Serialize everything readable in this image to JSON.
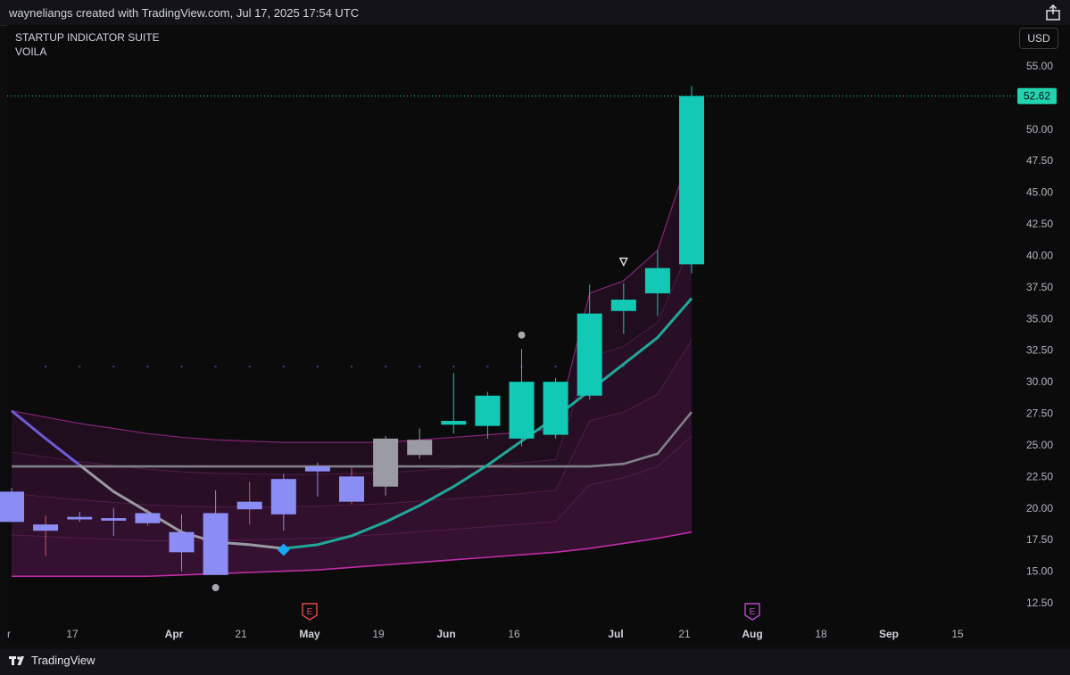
{
  "header": {
    "attribution": "wayneliangs created with TradingView.com, Jul 17, 2025 17:54 UTC"
  },
  "legend": {
    "line1": "STARTUP INDICATOR SUITE",
    "line2": "VOILA"
  },
  "currency_button": "USD",
  "price_tag": {
    "value": "52.62",
    "color": "#22d3b0"
  },
  "footer": {
    "brand": "TradingView"
  },
  "icons": {
    "share": "share-icon",
    "logo": "tradingview-logo-icon",
    "earnings": "earnings-marker-icon"
  },
  "colors": {
    "up": "#12c9b5",
    "down_blue": "#8c8cf5",
    "neutral": "#9b9ba3",
    "ema": "#1fa89a",
    "band": "#a02a8c"
  },
  "chart_data": {
    "type": "candlestick",
    "title": "STARTUP INDICATOR SUITE",
    "subtitle": "VOILA",
    "xlabel": "",
    "ylabel": "",
    "ylim": [
      12.5,
      55.0
    ],
    "y_ticks": [
      "55.00",
      "52.50",
      "50.00",
      "47.50",
      "45.00",
      "42.50",
      "40.00",
      "37.50",
      "35.00",
      "32.50",
      "30.00",
      "27.50",
      "25.00",
      "22.50",
      "20.00",
      "17.50",
      "15.00",
      "12.50"
    ],
    "x_ticks": [
      "r",
      "17",
      "Apr",
      "21",
      "May",
      "19",
      "Jun",
      "16",
      "Jul",
      "21",
      "Aug",
      "18",
      "Sep",
      "15"
    ],
    "last_price": 52.62,
    "candles": [
      {
        "o": 21.3,
        "h": 21.6,
        "l": 18.9,
        "c": 18.9,
        "color": "down_blue"
      },
      {
        "o": 18.7,
        "h": 19.4,
        "l": 16.2,
        "c": 18.2,
        "color": "down_blue"
      },
      {
        "o": 19.3,
        "h": 19.7,
        "l": 18.9,
        "c": 19.1,
        "color": "down_blue"
      },
      {
        "o": 19.0,
        "h": 20.0,
        "l": 17.8,
        "c": 19.2,
        "color": "down_blue"
      },
      {
        "o": 19.6,
        "h": 19.9,
        "l": 18.6,
        "c": 18.8,
        "color": "down_blue"
      },
      {
        "o": 18.1,
        "h": 19.5,
        "l": 15.0,
        "c": 16.5,
        "color": "down_blue"
      },
      {
        "o": 14.7,
        "h": 21.4,
        "l": 14.7,
        "c": 19.6,
        "color": "down_blue"
      },
      {
        "o": 19.9,
        "h": 22.1,
        "l": 18.7,
        "c": 20.5,
        "color": "down_blue"
      },
      {
        "o": 19.5,
        "h": 22.7,
        "l": 18.2,
        "c": 22.3,
        "color": "down_blue"
      },
      {
        "o": 22.9,
        "h": 23.6,
        "l": 20.9,
        "c": 23.3,
        "color": "down_blue"
      },
      {
        "o": 22.5,
        "h": 23.2,
        "l": 20.3,
        "c": 20.5,
        "color": "down_blue"
      },
      {
        "o": 21.7,
        "h": 25.7,
        "l": 21.0,
        "c": 25.5,
        "color": "neutral"
      },
      {
        "o": 24.2,
        "h": 26.3,
        "l": 23.9,
        "c": 25.4,
        "color": "neutral"
      },
      {
        "o": 26.6,
        "h": 30.7,
        "l": 25.9,
        "c": 26.9,
        "color": "up"
      },
      {
        "o": 26.5,
        "h": 29.2,
        "l": 25.5,
        "c": 28.9,
        "color": "up"
      },
      {
        "o": 25.5,
        "h": 32.6,
        "l": 24.9,
        "c": 30.0,
        "color": "up"
      },
      {
        "o": 25.8,
        "h": 30.3,
        "l": 25.5,
        "c": 30.0,
        "color": "up"
      },
      {
        "o": 28.9,
        "h": 37.7,
        "l": 28.6,
        "c": 35.4,
        "color": "up"
      },
      {
        "o": 35.6,
        "h": 37.8,
        "l": 33.8,
        "c": 36.5,
        "color": "up"
      },
      {
        "o": 37.0,
        "h": 40.4,
        "l": 35.2,
        "c": 39.0,
        "color": "up"
      },
      {
        "o": 39.3,
        "h": 53.4,
        "l": 38.6,
        "c": 52.62,
        "color": "up"
      }
    ],
    "ema": [
      27.7,
      25.5,
      23.4,
      21.3,
      19.7,
      18.1,
      17.3,
      17.1,
      16.8,
      17.1,
      17.8,
      18.9,
      20.2,
      21.7,
      23.4,
      25.3,
      27.2,
      29.3,
      31.4,
      33.5,
      36.6
    ],
    "baseline": [
      23.3,
      23.3,
      23.3,
      23.3,
      23.3,
      23.3,
      23.3,
      23.3,
      23.3,
      23.3,
      23.3,
      23.3,
      23.3,
      23.3,
      23.3,
      23.3,
      23.3,
      23.3,
      23.5,
      24.3,
      27.6
    ],
    "band_upper": [
      27.7,
      27.2,
      26.7,
      26.3,
      25.9,
      25.6,
      25.4,
      25.3,
      25.2,
      25.2,
      25.2,
      25.2,
      25.4,
      25.6,
      25.8,
      26.0,
      26.3,
      37.0,
      38.0,
      40.4,
      48.5
    ],
    "band_lower": [
      14.6,
      14.6,
      14.6,
      14.6,
      14.6,
      14.7,
      14.8,
      14.9,
      15.0,
      15.1,
      15.3,
      15.5,
      15.7,
      15.9,
      16.1,
      16.3,
      16.5,
      16.8,
      17.2,
      17.6,
      18.1
    ],
    "markers": [
      {
        "type": "circle",
        "index": 15,
        "at": 33.7
      },
      {
        "type": "circle",
        "index": 6,
        "at": 13.7
      },
      {
        "type": "triangle-down",
        "index": 18,
        "at": 39.5
      },
      {
        "type": "diamond",
        "index": 8,
        "at": 16.7
      }
    ],
    "earnings_markers": [
      {
        "label": "E",
        "color": "#e24a4a"
      },
      {
        "label": "E",
        "color": "#b84ad0"
      }
    ],
    "grid": false
  }
}
